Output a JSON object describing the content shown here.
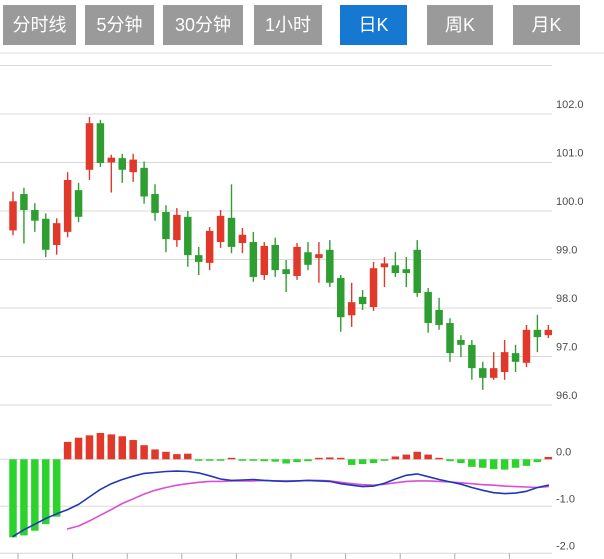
{
  "tab_bar": {
    "tabs": [
      {
        "label": "分时线",
        "active": false
      },
      {
        "label": "5分钟",
        "active": false
      },
      {
        "label": "30分钟",
        "active": false
      },
      {
        "label": "1小时",
        "active": false
      },
      {
        "label": "日K",
        "active": true
      },
      {
        "label": "周K",
        "active": false
      },
      {
        "label": "月K",
        "active": false
      }
    ]
  },
  "colors": {
    "up_red": "#e0392c",
    "down_green": "#2f9e32",
    "macd_green": "#2cd32c",
    "dif_blue": "#2038b8",
    "dea_magenta": "#d94fd4",
    "grid": "#d9d9d9",
    "axis_text": "#4a4a4a",
    "tick": "#aaaaaa",
    "separator": "#dddddd",
    "tab_bg": "#9a9a9a",
    "tab_active_bg": "#1778d2",
    "tab_text": "#ffffff"
  },
  "chart_data": {
    "type": "candlestick",
    "title": "",
    "convention": "red = up candle, green = down candle",
    "legend_position": "none",
    "grid": "horizontal only",
    "price_panel": {
      "ylabel": "",
      "y_axis_labels": [
        "102.0",
        "101.0",
        "100.0",
        "99.0",
        "98.0",
        "97.0",
        "96.0"
      ],
      "y_gridline_values": [
        103,
        102,
        101,
        100,
        99,
        98,
        97,
        96
      ],
      "ylim": [
        95.8,
        103.0
      ],
      "candles_ohlc": [
        [
          99.6,
          100.4,
          99.5,
          100.2
        ],
        [
          100.35,
          100.48,
          99.33,
          100.02
        ],
        [
          100.02,
          100.16,
          99.57,
          99.8
        ],
        [
          99.84,
          99.95,
          99.05,
          99.2
        ],
        [
          99.3,
          99.85,
          99.1,
          99.75
        ],
        [
          99.57,
          100.8,
          99.46,
          100.64
        ],
        [
          100.43,
          100.58,
          99.77,
          99.88
        ],
        [
          100.85,
          101.94,
          100.64,
          101.81
        ],
        [
          101.81,
          101.88,
          100.91,
          100.99
        ],
        [
          101.0,
          101.16,
          100.38,
          101.1
        ],
        [
          101.09,
          101.18,
          100.58,
          100.85
        ],
        [
          100.8,
          101.18,
          100.6,
          101.06
        ],
        [
          100.89,
          101.02,
          100.15,
          100.3
        ],
        [
          100.35,
          100.55,
          99.8,
          99.96
        ],
        [
          99.98,
          100.12,
          99.15,
          99.42
        ],
        [
          99.4,
          100.06,
          99.26,
          99.92
        ],
        [
          99.88,
          100.0,
          98.85,
          99.09
        ],
        [
          99.09,
          99.26,
          98.68,
          98.95
        ],
        [
          98.93,
          99.67,
          98.78,
          99.59
        ],
        [
          99.36,
          100.02,
          99.24,
          99.9
        ],
        [
          99.86,
          100.55,
          99.13,
          99.26
        ],
        [
          99.34,
          99.65,
          99.13,
          99.51
        ],
        [
          99.36,
          99.57,
          98.54,
          98.64
        ],
        [
          98.68,
          99.36,
          98.58,
          99.28
        ],
        [
          99.3,
          99.45,
          98.64,
          98.78
        ],
        [
          98.8,
          98.99,
          98.33,
          98.7
        ],
        [
          98.66,
          99.34,
          98.58,
          99.26
        ],
        [
          99.15,
          99.36,
          98.78,
          98.89
        ],
        [
          99.03,
          99.36,
          98.52,
          99.11
        ],
        [
          99.2,
          99.4,
          98.43,
          98.52
        ],
        [
          98.62,
          98.68,
          97.51,
          97.81
        ],
        [
          97.85,
          98.52,
          97.61,
          98.12
        ],
        [
          98.23,
          98.37,
          97.96,
          98.08
        ],
        [
          98.02,
          98.95,
          97.94,
          98.82
        ],
        [
          98.84,
          99.05,
          98.43,
          98.92
        ],
        [
          98.88,
          99.15,
          98.64,
          98.72
        ],
        [
          98.8,
          99.05,
          98.43,
          98.72
        ],
        [
          99.2,
          99.4,
          98.23,
          98.31
        ],
        [
          98.33,
          98.41,
          97.49,
          97.69
        ],
        [
          97.96,
          98.21,
          97.55,
          97.65
        ],
        [
          97.69,
          97.79,
          96.89,
          97.07
        ],
        [
          97.34,
          97.44,
          96.99,
          97.24
        ],
        [
          97.24,
          97.34,
          96.52,
          96.76
        ],
        [
          96.76,
          96.89,
          96.31,
          96.56
        ],
        [
          96.56,
          97.09,
          96.52,
          96.76
        ],
        [
          96.68,
          97.34,
          96.52,
          97.09
        ],
        [
          97.07,
          97.24,
          96.68,
          96.89
        ],
        [
          96.87,
          97.65,
          96.78,
          97.55
        ],
        [
          97.55,
          97.86,
          97.09,
          97.4
        ],
        [
          97.44,
          97.65,
          97.38,
          97.55
        ]
      ]
    },
    "macd_panel": {
      "y_axis_labels": [
        "0.0",
        "-1.0",
        "-2.0"
      ],
      "y_gridline_values": [
        0,
        -1,
        -2
      ],
      "ylim": [
        -2.1,
        0.6
      ],
      "histogram": [
        -1.66,
        -1.62,
        -1.52,
        -1.38,
        -1.22,
        0.37,
        0.46,
        0.51,
        0.56,
        0.53,
        0.49,
        0.41,
        0.3,
        0.21,
        0.16,
        0.11,
        0.12,
        -0.02,
        -0.03,
        -0.02,
        0.03,
        -0.01,
        -0.03,
        -0.04,
        -0.05,
        -0.09,
        -0.06,
        -0.04,
        0.01,
        0.04,
        0.02,
        -0.12,
        -0.1,
        -0.08,
        -0.02,
        0.06,
        0.1,
        0.16,
        0.1,
        0.03,
        -0.04,
        -0.08,
        -0.16,
        -0.18,
        -0.21,
        -0.22,
        -0.18,
        -0.14,
        -0.06,
        0.05
      ],
      "dif_line": [
        -1.64,
        -1.5,
        -1.38,
        -1.26,
        -1.16,
        -1.07,
        -0.96,
        -0.8,
        -0.64,
        -0.52,
        -0.43,
        -0.36,
        -0.3,
        -0.28,
        -0.26,
        -0.25,
        -0.26,
        -0.29,
        -0.35,
        -0.42,
        -0.45,
        -0.44,
        -0.43,
        -0.45,
        -0.46,
        -0.47,
        -0.46,
        -0.45,
        -0.46,
        -0.47,
        -0.52,
        -0.55,
        -0.58,
        -0.57,
        -0.51,
        -0.42,
        -0.34,
        -0.31,
        -0.37,
        -0.43,
        -0.48,
        -0.53,
        -0.6,
        -0.66,
        -0.71,
        -0.73,
        -0.72,
        -0.68,
        -0.6,
        -0.55
      ],
      "dea_line": [
        null,
        null,
        null,
        null,
        null,
        -1.48,
        -1.42,
        -1.31,
        -1.19,
        -1.07,
        -0.94,
        -0.84,
        -0.74,
        -0.66,
        -0.6,
        -0.55,
        -0.52,
        -0.49,
        -0.47,
        -0.47,
        -0.46,
        -0.46,
        -0.46,
        -0.45,
        -0.46,
        -0.46,
        -0.46,
        -0.45,
        -0.45,
        -0.46,
        -0.49,
        -0.52,
        -0.54,
        -0.55,
        -0.53,
        -0.5,
        -0.47,
        -0.46,
        -0.46,
        -0.47,
        -0.48,
        -0.5,
        -0.52,
        -0.54,
        -0.55,
        -0.57,
        -0.58,
        -0.59,
        -0.6,
        -0.58
      ]
    }
  }
}
